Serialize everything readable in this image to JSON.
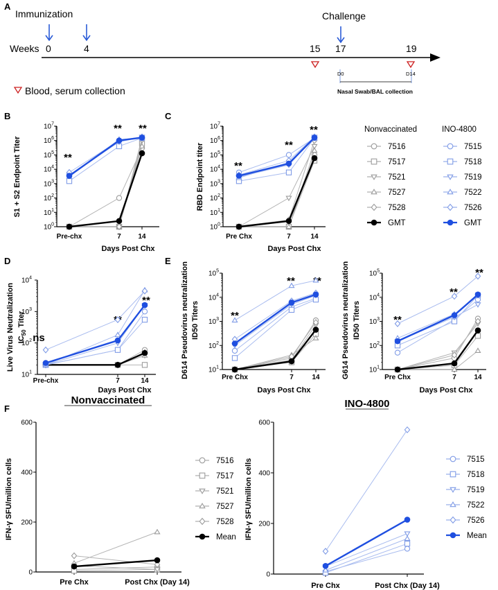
{
  "colors": {
    "gray": "#9b9b9b",
    "black": "#000000",
    "blue": "#1f4fe0",
    "lightblue": "#8fa8ea",
    "red": "#cc1f1f",
    "arrow": "#2a5bd7"
  },
  "panel_labels": {
    "a": "A",
    "b": "B",
    "c": "C",
    "d": "D",
    "e": "E",
    "f": "F"
  },
  "timeline": {
    "immunization": "Immunization",
    "challenge": "Challenge",
    "weeks_label": "Weeks",
    "weeks": [
      "0",
      "4",
      "15",
      "17",
      "19"
    ],
    "blood_label": "Blood, serum collection",
    "d0": "D0",
    "d14": "D14",
    "nasal_label": "Nasal Swab/BAL collection"
  },
  "legend_bc": {
    "nonvacc_title": "Nonvaccinated",
    "vacc_title": "INO-4800",
    "nonvacc": [
      "7516",
      "7517",
      "7521",
      "7527",
      "7528",
      "GMT"
    ],
    "vacc": [
      "7515",
      "7518",
      "7519",
      "7522",
      "7526",
      "GMT"
    ]
  },
  "legend_f_nonvacc": [
    "7516",
    "7517",
    "7521",
    "7527",
    "7528",
    "Mean"
  ],
  "legend_f_vacc": [
    "7515",
    "7518",
    "7519",
    "7522",
    "7526",
    "Mean"
  ],
  "markers": [
    "circle",
    "square",
    "tri-down",
    "tri-up",
    "diamond"
  ],
  "chart_data": [
    {
      "id": "B",
      "type": "line",
      "yscale": "log",
      "ylim": [
        1,
        10000000
      ],
      "ylabel": "S1 + S2 Endpoint Titer",
      "xlabel": "Days Post Chx",
      "categories": [
        "Pre-chx",
        "7",
        "14"
      ],
      "yticks": [
        [
          "10",
          "0"
        ],
        [
          "10",
          "1"
        ],
        [
          "10",
          "2"
        ],
        [
          "10",
          "3"
        ],
        [
          "10",
          "4"
        ],
        [
          "10",
          "5"
        ],
        [
          "10",
          "6"
        ],
        [
          "10",
          "7"
        ]
      ],
      "significance": [
        "**",
        "**",
        "**"
      ],
      "nonvacc": [
        [
          1,
          100,
          300000
        ],
        [
          1,
          1,
          600000
        ],
        [
          1,
          1,
          1000000
        ],
        [
          1,
          1,
          400000
        ],
        [
          1,
          1,
          1500000
        ]
      ],
      "nonvacc_gmt": [
        1,
        2.5,
        130000
      ],
      "vacc": [
        [
          4000,
          1000000,
          1500000
        ],
        [
          1500,
          400000,
          1500000
        ],
        [
          4000,
          800000,
          1800000
        ],
        [
          3000,
          1200000,
          1500000
        ],
        [
          6000,
          1000000,
          1800000
        ]
      ],
      "vacc_gmt": [
        3500,
        1000000,
        1600000
      ]
    },
    {
      "id": "C",
      "type": "line",
      "yscale": "log",
      "ylim": [
        1,
        10000000
      ],
      "ylabel": "RBD Endpoint titer",
      "xlabel": "Days Post Chx",
      "categories": [
        "Pre Chx",
        "7",
        "14"
      ],
      "yticks": [
        [
          "10",
          "0"
        ],
        [
          "10",
          "1"
        ],
        [
          "10",
          "2"
        ],
        [
          "10",
          "3"
        ],
        [
          "10",
          "4"
        ],
        [
          "10",
          "5"
        ],
        [
          "10",
          "6"
        ],
        [
          "10",
          "7"
        ]
      ],
      "significance": [
        "**",
        "**",
        "**"
      ],
      "nonvacc": [
        [
          1,
          1,
          100000
        ],
        [
          1,
          1,
          40000
        ],
        [
          1,
          100,
          400000
        ],
        [
          1,
          1,
          200000
        ],
        [
          1,
          3,
          1000000
        ]
      ],
      "nonvacc_gmt": [
        1,
        2.5,
        60000
      ],
      "vacc": [
        [
          6000,
          100000,
          1500000
        ],
        [
          1500,
          6000,
          1500000
        ],
        [
          3000,
          20000,
          1800000
        ],
        [
          2500,
          30000,
          1500000
        ],
        [
          4000,
          40000,
          1800000
        ]
      ],
      "vacc_gmt": [
        3500,
        25000,
        1600000
      ]
    },
    {
      "id": "D",
      "type": "line",
      "yscale": "log",
      "ylim": [
        10,
        10000
      ],
      "ylabel": "Live Virus Neutralization",
      "ylabel2a": "IC",
      "ylabel2sub": "50",
      "ylabel2b": " Titer",
      "xlabel": "Days Post  Chx",
      "categories": [
        "Pre-chx",
        "7",
        "14"
      ],
      "yticks": [
        [
          "10",
          "1"
        ],
        [
          "10",
          "2"
        ],
        [
          "10",
          "3"
        ],
        [
          "10",
          "4"
        ]
      ],
      "significance": [
        "ns",
        "**",
        "**"
      ],
      "nonvacc": [
        [
          20,
          20,
          60
        ],
        [
          20,
          20,
          20
        ],
        [
          20,
          20,
          40
        ],
        [
          20,
          20,
          40
        ],
        [
          20,
          20,
          50
        ]
      ],
      "nonvacc_gmt": [
        20,
        20,
        48
      ],
      "vacc": [
        [
          20,
          60,
          1000
        ],
        [
          20,
          60,
          550
        ],
        [
          20,
          100,
          1600
        ],
        [
          20,
          180,
          4800
        ],
        [
          60,
          550,
          4500
        ]
      ],
      "vacc_gmt": [
        23,
        120,
        1600
      ]
    },
    {
      "id": "E1",
      "type": "line",
      "yscale": "log",
      "ylim": [
        10,
        100000
      ],
      "ylabel": "D614 Pseudovirus neutralization",
      "ylabel2": "ID50 Titers",
      "xlabel": "Days Post Chx",
      "categories": [
        "Pre Chx",
        "7",
        "14"
      ],
      "yticks": [
        [
          "10",
          "1"
        ],
        [
          "10",
          "2"
        ],
        [
          "10",
          "3"
        ],
        [
          "10",
          "4"
        ],
        [
          "10",
          "5"
        ]
      ],
      "significance": [
        "**",
        "**",
        "**"
      ],
      "nonvacc": [
        [
          10,
          30,
          1100
        ],
        [
          10,
          20,
          300
        ],
        [
          10,
          25,
          700
        ],
        [
          10,
          40,
          200
        ],
        [
          10,
          35,
          900
        ]
      ],
      "nonvacc_gmt": [
        10,
        22,
        450
      ],
      "vacc": [
        [
          60,
          4000,
          9000
        ],
        [
          30,
          3000,
          8000
        ],
        [
          100,
          5000,
          12000
        ],
        [
          1100,
          30000,
          50000
        ],
        [
          180,
          7000,
          15000
        ]
      ],
      "vacc_gmt": [
        120,
        6000,
        13000
      ]
    },
    {
      "id": "E2",
      "type": "line",
      "yscale": "log",
      "ylim": [
        10,
        100000
      ],
      "ylabel": "G614 Pseudovirus neutralization",
      "ylabel2": "ID50 Titers",
      "xlabel": "Days Post Chx",
      "categories": [
        "Pre Chx",
        "7",
        "14"
      ],
      "yticks": [
        [
          "10",
          "1"
        ],
        [
          "10",
          "2"
        ],
        [
          "10",
          "3"
        ],
        [
          "10",
          "4"
        ],
        [
          "10",
          "5"
        ]
      ],
      "significance": [
        "**",
        "**",
        "**"
      ],
      "nonvacc": [
        [
          10,
          30,
          1300
        ],
        [
          10,
          15,
          250
        ],
        [
          10,
          50,
          800
        ],
        [
          10,
          10,
          60
        ],
        [
          10,
          40,
          1000
        ]
      ],
      "nonvacc_gmt": [
        10,
        18,
        420
      ],
      "vacc": [
        [
          50,
          1200,
          8000
        ],
        [
          100,
          1000,
          12000
        ],
        [
          150,
          1500,
          5000
        ],
        [
          200,
          2000,
          13000
        ],
        [
          800,
          11000,
          75000
        ]
      ],
      "vacc_gmt": [
        150,
        1800,
        13000
      ]
    },
    {
      "id": "F1",
      "type": "line",
      "yscale": "linear",
      "ylim": [
        0,
        600
      ],
      "title": "Nonvaccinated",
      "ylabel": "IFN-γ SFU/million cells",
      "xlabel": "",
      "categories": [
        "Pre Chx",
        "Post Chx (Day 14)"
      ],
      "yticks": [
        [
          "0"
        ],
        [
          "200"
        ],
        [
          "400"
        ],
        [
          "600"
        ]
      ],
      "nonvacc": [
        [
          10,
          20
        ],
        [
          5,
          10
        ],
        [
          25,
          10
        ],
        [
          35,
          160
        ],
        [
          65,
          30
        ]
      ],
      "nonvacc_gmt": [
        22,
        47
      ]
    },
    {
      "id": "F2",
      "type": "line",
      "yscale": "linear",
      "ylim": [
        0,
        600
      ],
      "title": "INO-4800",
      "ylabel": "IFN-γ SFU/million cells",
      "xlabel": "",
      "categories": [
        "Pre Chx",
        "Post Chx (Day 14)"
      ],
      "yticks": [
        [
          "0"
        ],
        [
          "200"
        ],
        [
          "400"
        ],
        [
          "600"
        ]
      ],
      "vacc": [
        [
          10,
          100
        ],
        [
          5,
          120
        ],
        [
          30,
          160
        ],
        [
          15,
          140
        ],
        [
          90,
          570
        ]
      ],
      "vacc_gmt": [
        32,
        215
      ]
    }
  ]
}
